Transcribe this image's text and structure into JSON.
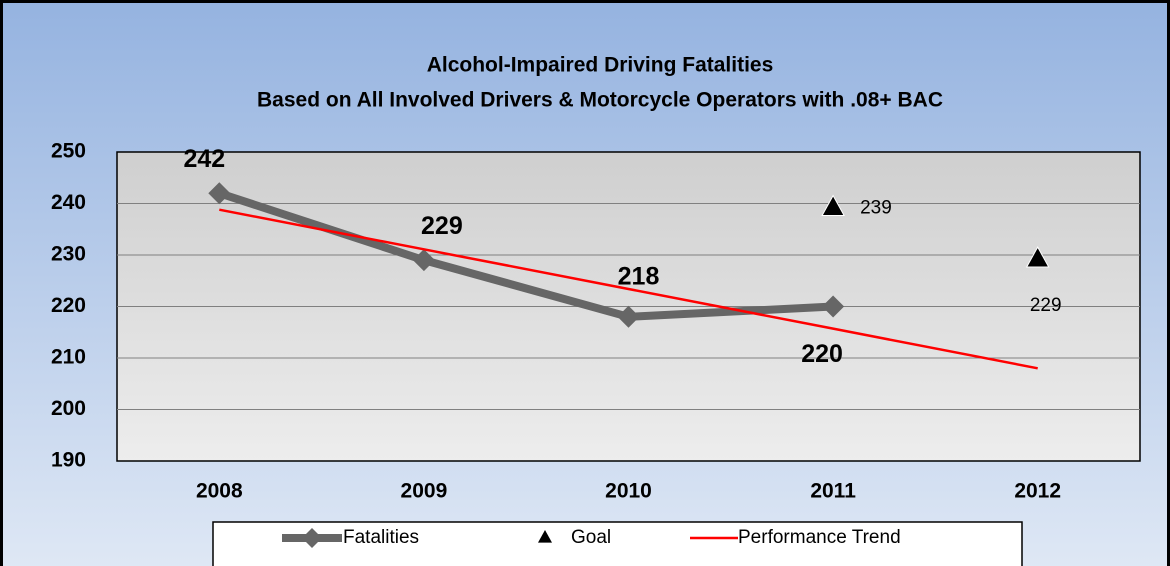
{
  "chart_data": {
    "type": "line",
    "title": "Alcohol-Impaired Driving Fatalities",
    "subtitle": "Based on All Involved Drivers & Motorcycle Operators with .08+ BAC",
    "categories": [
      "2008",
      "2009",
      "2010",
      "2011",
      "2012"
    ],
    "series": [
      {
        "name": "Fatalities",
        "color": "#666666",
        "values": [
          242,
          229,
          218,
          220,
          null
        ]
      },
      {
        "name": "Goal",
        "color": "#000000",
        "values": [
          null,
          null,
          null,
          239,
          229
        ]
      },
      {
        "name": "Performance Trend",
        "color": "#ff0000",
        "values": [
          238.8,
          231.1,
          223.4,
          215.7,
          208
        ]
      }
    ],
    "ylim": [
      190,
      250
    ],
    "yticks": [
      190,
      200,
      210,
      220,
      230,
      240,
      250
    ],
    "grid": true,
    "legend": "bottom"
  }
}
